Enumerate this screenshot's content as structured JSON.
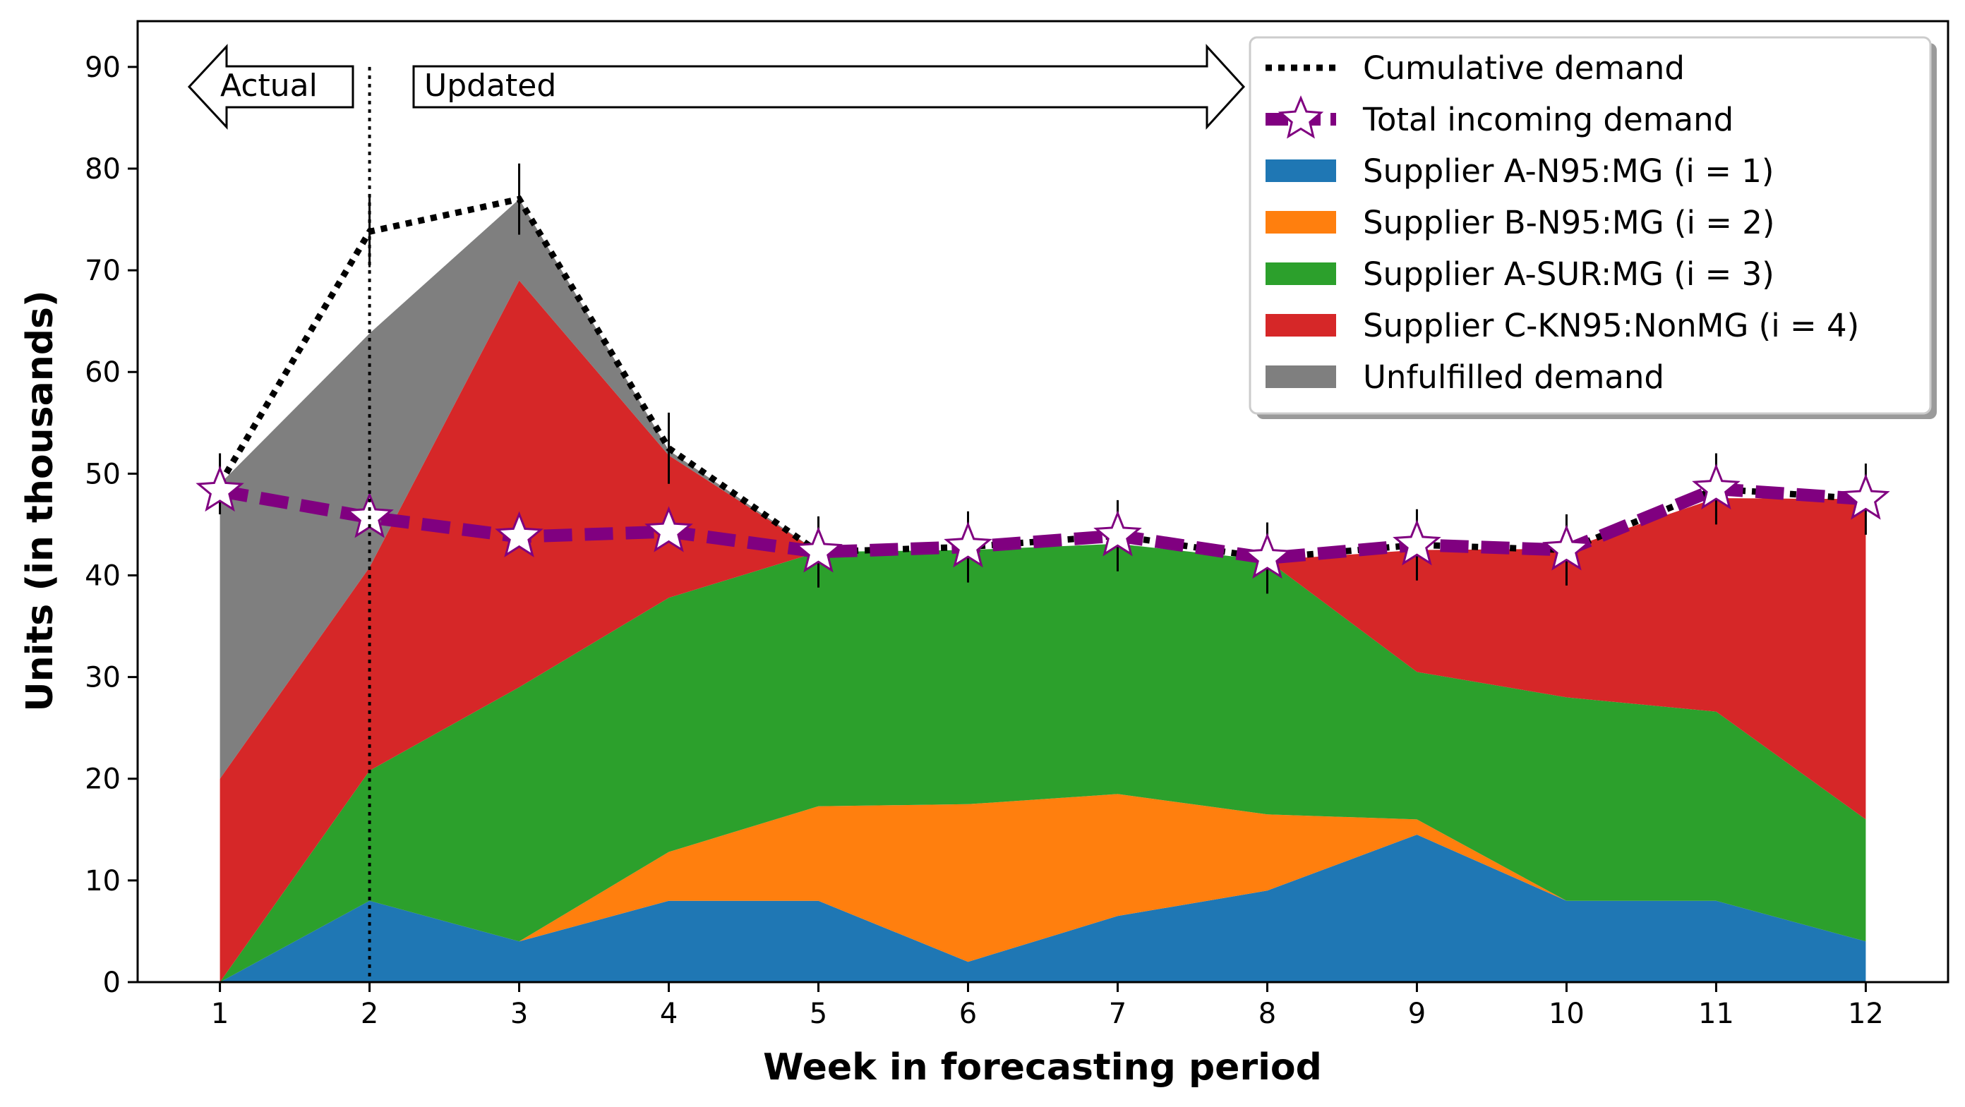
{
  "chart_data": {
    "type": "area",
    "xlabel": "Week in forecasting period",
    "ylabel": "Units (in thousands)",
    "x": [
      1,
      2,
      3,
      4,
      5,
      6,
      7,
      8,
      9,
      10,
      11,
      12
    ],
    "xlim": [
      0.45,
      12.55
    ],
    "ylim": [
      0,
      94.5
    ],
    "yticks": [
      0,
      10,
      20,
      30,
      40,
      50,
      60,
      70,
      80,
      90
    ],
    "legend_position": "top-right",
    "stacked_series": [
      {
        "name": "Supplier A-N95:MG (i = 1)",
        "color": "#1f77b4",
        "values": [
          0,
          8,
          4,
          8,
          8,
          2,
          6.5,
          9,
          14.5,
          8,
          8,
          4
        ]
      },
      {
        "name": "Supplier B-N95:MG (i = 2)",
        "color": "#ff7f0e",
        "values": [
          0,
          0,
          0,
          4.8,
          9.3,
          15.5,
          12,
          7.5,
          1.5,
          0,
          0,
          0
        ]
      },
      {
        "name": "Supplier A-SUR:MG (i = 3)",
        "color": "#2ca02c",
        "values": [
          0,
          12.8,
          25,
          25,
          25,
          25,
          24.6,
          25,
          14.5,
          20,
          18.6,
          12
        ]
      },
      {
        "name": "Supplier C-KN95:NonMG (i = 4)",
        "color": "#d62728",
        "values": [
          20,
          20,
          40,
          14,
          0,
          0,
          0,
          0,
          12,
          14.6,
          21,
          31.5
        ]
      },
      {
        "name": "Unfulfilled demand",
        "color": "#7f7f7f",
        "values": [
          29,
          23,
          8,
          0.5,
          0,
          0,
          0,
          0,
          0,
          0,
          0,
          0
        ]
      }
    ],
    "line_series": [
      {
        "name": "Cumulative demand",
        "color": "#000000",
        "style": "dotted",
        "values": [
          49,
          73.8,
          77,
          52.5,
          42.3,
          42.8,
          43.9,
          41.7,
          43,
          42.5,
          48.5,
          47.5
        ],
        "error": [
          3,
          3.5,
          3.5,
          3.5,
          3.5,
          3.5,
          3.5,
          3.5,
          3.5,
          3.5,
          3.5,
          3.5
        ]
      },
      {
        "name": "Total incoming demand",
        "color": "#800080",
        "style": "dashed-star",
        "values": [
          48.3,
          45.7,
          43.8,
          44.3,
          42.3,
          42.8,
          43.9,
          41.7,
          43,
          42.5,
          48.5,
          47.5
        ]
      }
    ],
    "annotations": {
      "actual_label": "Actual",
      "updated_label": "Updated",
      "divider_x": 2
    }
  }
}
